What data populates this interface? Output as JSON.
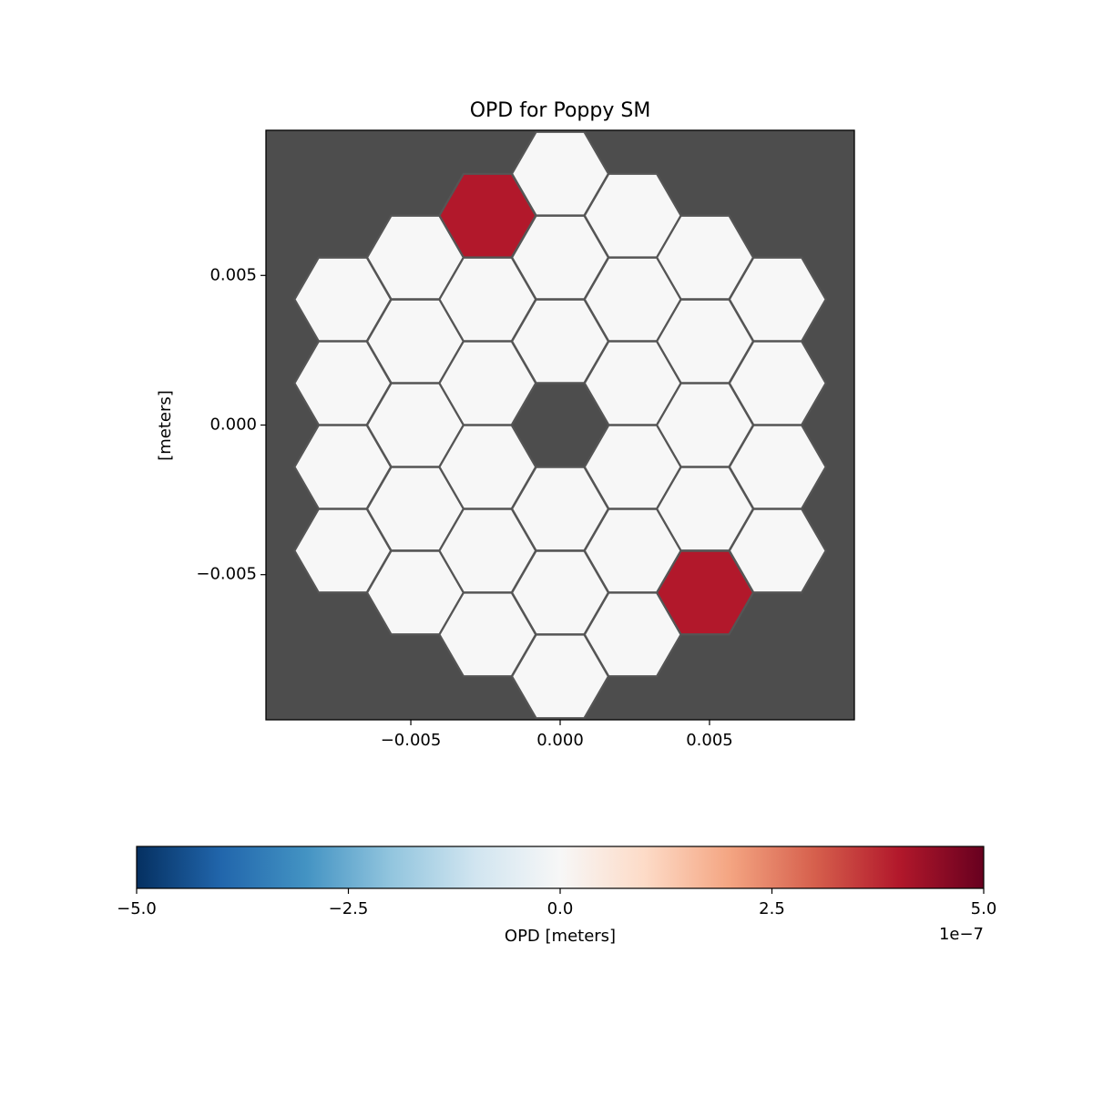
{
  "chart_data": {
    "type": "hexmap",
    "title": "OPD for Poppy SM",
    "y_label": "[meters]",
    "xlim": [
      -0.00985,
      0.00985
    ],
    "ylim": [
      -0.00985,
      0.00985
    ],
    "xticks": [
      {
        "value": -0.005,
        "label": "−0.005"
      },
      {
        "value": 0,
        "label": "0.000"
      },
      {
        "value": 0.005,
        "label": "0.005"
      }
    ],
    "yticks": [
      {
        "value": -0.005,
        "label": "−0.005"
      },
      {
        "value": 0,
        "label": "0.000"
      },
      {
        "value": 0.005,
        "label": "0.005"
      }
    ],
    "background": "#4d4d4d",
    "edge_color": "#555555",
    "x": [
      -0.00728,
      -0.00728,
      -0.00728,
      -0.00728,
      -0.00485,
      -0.00485,
      -0.00485,
      -0.00485,
      -0.00485,
      -0.00243,
      -0.00243,
      -0.00243,
      -0.00243,
      -0.00243,
      -0.00243,
      0,
      0,
      0,
      0,
      0,
      0,
      0.00243,
      0.00243,
      0.00243,
      0.00243,
      0.00243,
      0.00243,
      0.00485,
      0.00485,
      0.00485,
      0.00485,
      0.00485,
      0.00728,
      0.00728,
      0.00728,
      0.00728
    ],
    "y": [
      0.0042,
      0.0014,
      -0.0014,
      -0.0042,
      0.0056,
      0.0028,
      0,
      -0.0028,
      -0.0056,
      0.007,
      0.0042,
      0.0014,
      -0.0014,
      -0.0042,
      -0.007,
      0.0084,
      0.0056,
      0.0028,
      -0.0028,
      -0.0056,
      -0.0084,
      0.007,
      0.0042,
      0.0014,
      -0.0014,
      -0.0042,
      -0.007,
      0.0056,
      0.0028,
      0,
      -0.0028,
      -0.0056,
      0.0042,
      0.0014,
      -0.0014,
      -0.0042
    ],
    "values": [
      0,
      0,
      0,
      0,
      0,
      0,
      0,
      0,
      0,
      4e-07,
      0,
      0,
      0,
      0,
      0,
      0,
      0,
      0,
      0,
      0,
      0,
      0,
      0,
      0,
      0,
      0,
      0,
      0,
      0,
      0,
      0,
      4e-07,
      0,
      0,
      0,
      0
    ],
    "colorbar": {
      "label": "OPD [meters]",
      "offset_label": "1e−7",
      "clim": [
        -5e-07,
        5e-07
      ],
      "ticks": [
        {
          "value": -5e-07,
          "label": "−5.0"
        },
        {
          "value": -2.5e-07,
          "label": "−2.5"
        },
        {
          "value": 0,
          "label": "0.0"
        },
        {
          "value": 2.5e-07,
          "label": "2.5"
        },
        {
          "value": 5e-07,
          "label": "5.0"
        }
      ],
      "colors": [
        "#053061",
        "#2166ac",
        "#4393c3",
        "#92c5de",
        "#d1e5f0",
        "#f7f7f7",
        "#fddbc7",
        "#f4a582",
        "#d6604d",
        "#b2182b",
        "#67001f"
      ]
    }
  }
}
